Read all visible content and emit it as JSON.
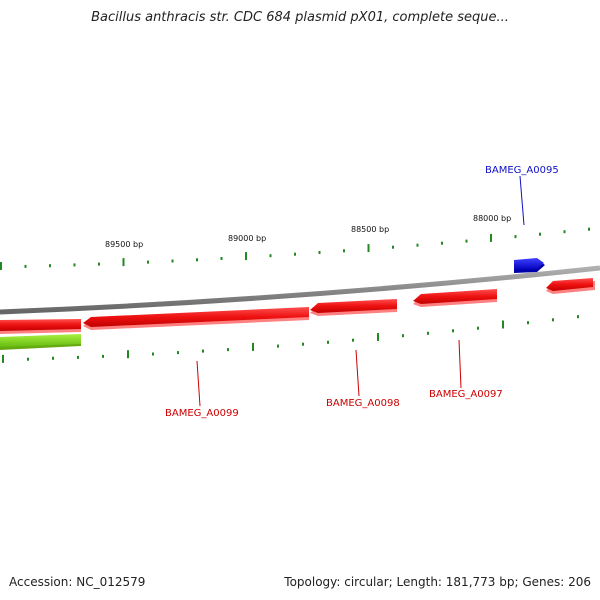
{
  "title": "Bacillus anthracis str. CDC 684 plasmid pX01, complete seque...",
  "footer": {
    "accession": "Accession: NC_012579",
    "summary": "Topology: circular; Length: 181,773 bp; Genes: 206"
  },
  "bp_labels": [
    "89500 bp",
    "89000 bp",
    "88500 bp",
    "88000 bp"
  ],
  "genes": [
    {
      "name": "BAMEG_A0095",
      "color": "#1010c8"
    },
    {
      "name": "BAMEG_A0097",
      "color": "#cc0000"
    },
    {
      "name": "BAMEG_A0098",
      "color": "#cc0000"
    },
    {
      "name": "BAMEG_A0099",
      "color": "#cc0000"
    }
  ],
  "colors": {
    "backbone": "#888888",
    "reverse_gene": "#ee1111",
    "forward_gene": "#1111dd",
    "other_feature": "#88dd22",
    "ticks": "#228822"
  }
}
